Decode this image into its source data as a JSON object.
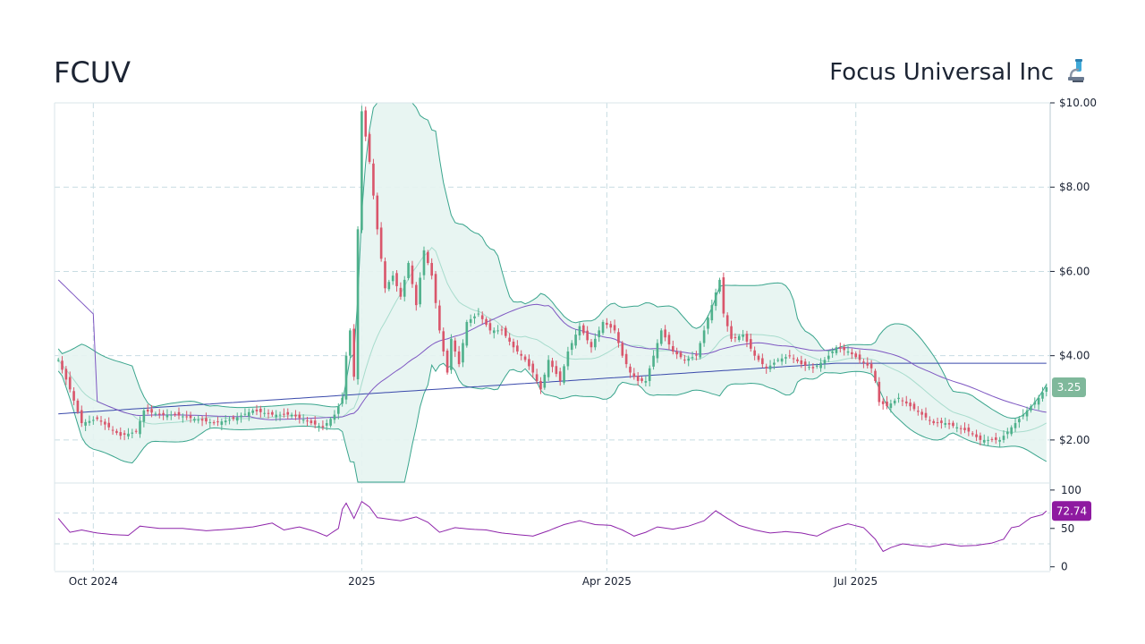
{
  "header": {
    "ticker": "FCUV",
    "company": "Focus Universal Inc",
    "icon": "microscope-icon"
  },
  "colors": {
    "up": "#4fb18c",
    "down": "#d9566b",
    "band_line": "#3aa58d",
    "band_fill": "#e6f4f1",
    "band_mid": "#a8dccd",
    "ma_long": "#3949ab",
    "ma_mid": "#7e57c2",
    "rsi": "#8e24aa",
    "price_badge": "#7fb89b",
    "rsi_badge": "#8e1aa0",
    "grid": "#c8dce2"
  },
  "chart_data": {
    "type": "candlestick",
    "symbol": "FCUV",
    "price_axis": {
      "ticks": [
        "$2.00",
        "$4.00",
        "$6.00",
        "$8.00",
        "$10.00"
      ],
      "tick_values": [
        2,
        4,
        6,
        8,
        10
      ],
      "range": [
        1.0,
        10.0
      ]
    },
    "rsi_axis": {
      "ticks": [
        "0",
        "50",
        "100"
      ],
      "tick_values": [
        0,
        50,
        100
      ],
      "range": [
        -5,
        108
      ],
      "guides": [
        30,
        70
      ]
    },
    "x_axis": {
      "labels": [
        "Oct 2024",
        "2025",
        "Apr 2025",
        "Jul 2025"
      ],
      "index": [
        9,
        78,
        141,
        205
      ]
    },
    "last_price_label": "3.25",
    "last_rsi_label": "72.74",
    "anchors": [
      [
        0,
        3.9
      ],
      [
        3,
        3.2
      ],
      [
        6,
        2.4
      ],
      [
        10,
        2.5
      ],
      [
        13,
        2.3
      ],
      [
        16,
        2.1
      ],
      [
        20,
        2.2
      ],
      [
        22,
        2.7
      ],
      [
        26,
        2.6
      ],
      [
        30,
        2.6
      ],
      [
        35,
        2.5
      ],
      [
        40,
        2.4
      ],
      [
        45,
        2.5
      ],
      [
        50,
        2.7
      ],
      [
        55,
        2.6
      ],
      [
        60,
        2.6
      ],
      [
        65,
        2.4
      ],
      [
        68,
        2.3
      ],
      [
        71,
        2.6
      ],
      [
        73,
        3.0
      ],
      [
        74,
        4.0
      ],
      [
        75,
        4.6
      ],
      [
        76,
        3.5
      ],
      [
        77,
        7.0
      ],
      [
        78,
        9.8
      ],
      [
        79,
        9.2
      ],
      [
        80,
        8.6
      ],
      [
        82,
        7.0
      ],
      [
        84,
        5.6
      ],
      [
        86,
        5.9
      ],
      [
        88,
        5.4
      ],
      [
        90,
        6.2
      ],
      [
        92,
        5.2
      ],
      [
        94,
        6.5
      ],
      [
        96,
        5.9
      ],
      [
        98,
        4.6
      ],
      [
        100,
        3.6
      ],
      [
        101,
        4.4
      ],
      [
        103,
        3.8
      ],
      [
        105,
        4.8
      ],
      [
        108,
        5.0
      ],
      [
        111,
        4.6
      ],
      [
        114,
        4.6
      ],
      [
        117,
        4.2
      ],
      [
        120,
        3.9
      ],
      [
        122,
        3.6
      ],
      [
        124,
        3.2
      ],
      [
        126,
        3.9
      ],
      [
        129,
        3.4
      ],
      [
        131,
        4.1
      ],
      [
        134,
        4.7
      ],
      [
        137,
        4.2
      ],
      [
        140,
        4.8
      ],
      [
        143,
        4.6
      ],
      [
        145,
        4.0
      ],
      [
        147,
        3.6
      ],
      [
        149,
        3.4
      ],
      [
        151,
        3.4
      ],
      [
        153,
        4.0
      ],
      [
        155,
        4.6
      ],
      [
        158,
        4.1
      ],
      [
        161,
        3.9
      ],
      [
        164,
        4.0
      ],
      [
        166,
        4.6
      ],
      [
        168,
        5.2
      ],
      [
        170,
        5.8
      ],
      [
        171,
        5.0
      ],
      [
        173,
        4.4
      ],
      [
        176,
        4.5
      ],
      [
        179,
        4.0
      ],
      [
        182,
        3.7
      ],
      [
        185,
        3.9
      ],
      [
        188,
        4.0
      ],
      [
        191,
        3.8
      ],
      [
        194,
        3.7
      ],
      [
        197,
        3.9
      ],
      [
        200,
        4.2
      ],
      [
        203,
        4.1
      ],
      [
        206,
        3.9
      ],
      [
        209,
        3.7
      ],
      [
        210,
        3.4
      ],
      [
        211,
        2.9
      ],
      [
        213,
        2.8
      ],
      [
        216,
        3.0
      ],
      [
        219,
        2.8
      ],
      [
        222,
        2.6
      ],
      [
        225,
        2.4
      ],
      [
        228,
        2.4
      ],
      [
        231,
        2.3
      ],
      [
        234,
        2.2
      ],
      [
        237,
        2.0
      ],
      [
        240,
        2.0
      ],
      [
        242,
        2.0
      ],
      [
        244,
        2.2
      ],
      [
        246,
        2.4
      ],
      [
        248,
        2.6
      ],
      [
        250,
        2.8
      ],
      [
        252,
        3.0
      ],
      [
        254,
        3.25
      ]
    ],
    "rsi_anchors": [
      [
        0,
        63
      ],
      [
        3,
        45
      ],
      [
        6,
        48
      ],
      [
        10,
        44
      ],
      [
        14,
        42
      ],
      [
        18,
        41
      ],
      [
        21,
        53
      ],
      [
        26,
        50
      ],
      [
        32,
        50
      ],
      [
        38,
        47
      ],
      [
        44,
        49
      ],
      [
        50,
        52
      ],
      [
        55,
        57
      ],
      [
        58,
        48
      ],
      [
        62,
        52
      ],
      [
        66,
        46
      ],
      [
        69,
        40
      ],
      [
        72,
        50
      ],
      [
        73,
        75
      ],
      [
        74,
        83
      ],
      [
        76,
        63
      ],
      [
        78,
        85
      ],
      [
        80,
        78
      ],
      [
        82,
        64
      ],
      [
        88,
        60
      ],
      [
        92,
        65
      ],
      [
        95,
        58
      ],
      [
        98,
        45
      ],
      [
        102,
        51
      ],
      [
        106,
        49
      ],
      [
        110,
        48
      ],
      [
        114,
        44
      ],
      [
        118,
        42
      ],
      [
        122,
        40
      ],
      [
        126,
        47
      ],
      [
        130,
        55
      ],
      [
        134,
        60
      ],
      [
        138,
        55
      ],
      [
        142,
        54
      ],
      [
        145,
        48
      ],
      [
        148,
        40
      ],
      [
        151,
        45
      ],
      [
        154,
        52
      ],
      [
        158,
        49
      ],
      [
        162,
        53
      ],
      [
        166,
        60
      ],
      [
        169,
        73
      ],
      [
        172,
        63
      ],
      [
        175,
        54
      ],
      [
        179,
        48
      ],
      [
        183,
        44
      ],
      [
        187,
        46
      ],
      [
        191,
        44
      ],
      [
        195,
        40
      ],
      [
        199,
        50
      ],
      [
        203,
        56
      ],
      [
        207,
        51
      ],
      [
        210,
        36
      ],
      [
        212,
        20
      ],
      [
        214,
        25
      ],
      [
        217,
        30
      ],
      [
        220,
        28
      ],
      [
        224,
        26
      ],
      [
        228,
        30
      ],
      [
        232,
        27
      ],
      [
        236,
        28
      ],
      [
        240,
        31
      ],
      [
        243,
        36
      ],
      [
        245,
        51
      ],
      [
        247,
        53
      ],
      [
        250,
        64
      ],
      [
        253,
        68
      ],
      [
        254,
        72.74
      ]
    ]
  }
}
